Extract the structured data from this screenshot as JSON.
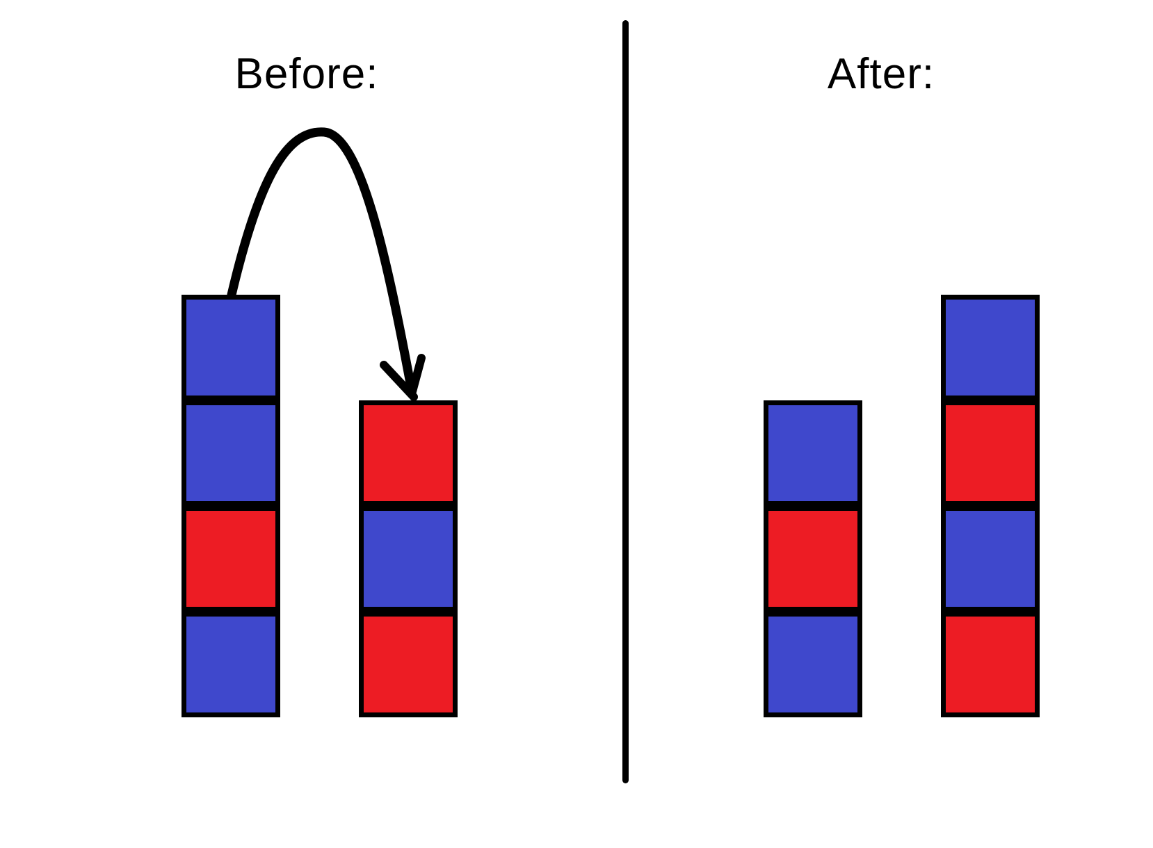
{
  "colors": {
    "blue": "#3F48CC",
    "red": "#ED1C24",
    "outline": "#000000",
    "background": "#ffffff"
  },
  "panels": {
    "before": {
      "title": "Before:",
      "stacks": [
        {
          "id": "before-left",
          "blocks": [
            "blue",
            "blue",
            "red",
            "blue"
          ]
        },
        {
          "id": "before-right",
          "blocks": [
            "red",
            "blue",
            "red"
          ]
        }
      ],
      "arrow": "curved arrow from top block of left stack onto top of right stack"
    },
    "after": {
      "title": "After:",
      "stacks": [
        {
          "id": "after-left",
          "blocks": [
            "blue",
            "red",
            "blue"
          ]
        },
        {
          "id": "after-right",
          "blocks": [
            "blue",
            "red",
            "blue",
            "red"
          ]
        }
      ]
    }
  }
}
